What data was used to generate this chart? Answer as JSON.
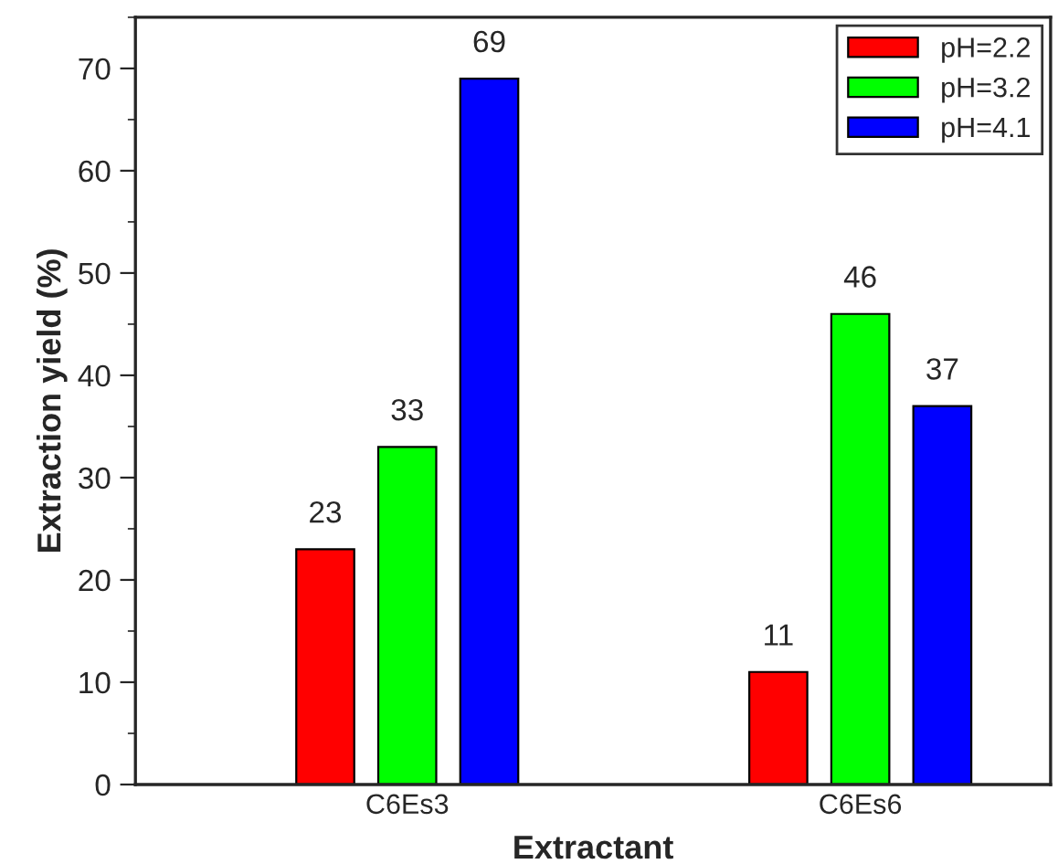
{
  "chart_data": {
    "type": "bar",
    "xlabel": "Extractant",
    "ylabel": "Extraction yield (%)",
    "categories": [
      "C6Es3",
      "C6Es6"
    ],
    "series": [
      {
        "name": "pH=2.2",
        "color": "#ff0000",
        "values": [
          23,
          11
        ]
      },
      {
        "name": "pH=3.2",
        "color": "#00ff00",
        "values": [
          33,
          46
        ]
      },
      {
        "name": "pH=4.1",
        "color": "#0000ff",
        "values": [
          69,
          37
        ]
      }
    ],
    "ylim": [
      0,
      75
    ],
    "yticks": [
      0,
      10,
      20,
      30,
      40,
      50,
      60,
      70
    ],
    "data_labels": true,
    "legend": "top right",
    "grid": false
  }
}
